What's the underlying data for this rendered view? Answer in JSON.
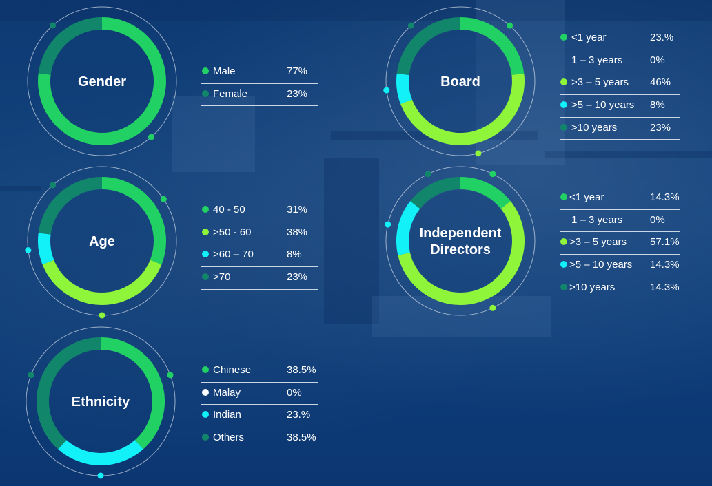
{
  "colors": {
    "dark_green": "#12866b",
    "green": "#21d163",
    "lime": "#8ff53a",
    "cyan": "#12f0f8",
    "white": "#ffffff",
    "outer_ring": "#c8d4e2"
  },
  "chart_data": [
    {
      "type": "pie",
      "title": "Gender",
      "categories": [
        "Male",
        "Female"
      ],
      "values": [
        77,
        23
      ],
      "value_labels": [
        "77%",
        "23%"
      ],
      "colors": [
        "green",
        "dark_green"
      ]
    },
    {
      "type": "pie",
      "title": "Age",
      "categories": [
        "40 - 50",
        ">50 - 60",
        ">60 – 70",
        ">70"
      ],
      "values": [
        31,
        38,
        8,
        23
      ],
      "value_labels": [
        "31%",
        "38%",
        "8%",
        "23%"
      ],
      "colors": [
        "green",
        "lime",
        "cyan",
        "dark_green"
      ]
    },
    {
      "type": "pie",
      "title": "Ethnicity",
      "categories": [
        "Chinese",
        "Malay",
        "Indian",
        "Others"
      ],
      "values": [
        38.5,
        0,
        23.1,
        38.5
      ],
      "value_labels": [
        "38.5%",
        "0%",
        "23.%",
        "38.5%"
      ],
      "colors": [
        "green",
        "white",
        "cyan",
        "dark_green"
      ]
    },
    {
      "type": "pie",
      "title": "Board",
      "categories": [
        "<1 year",
        "1 – 3 years",
        ">3 – 5 years",
        ">5 – 10 years",
        ">10 years"
      ],
      "values": [
        23.1,
        0,
        46.2,
        7.7,
        23.1
      ],
      "value_labels": [
        "23.%",
        "0%",
        "46%",
        "8%",
        "23%"
      ],
      "colors": [
        "green",
        "none",
        "lime",
        "cyan",
        "dark_green"
      ]
    },
    {
      "type": "pie",
      "title": "Independent Directors",
      "title_lines": [
        "Independent",
        "Directors"
      ],
      "categories": [
        "<1 year",
        "1 – 3 years",
        ">3 – 5 years",
        ">5 – 10 years",
        ">10 years"
      ],
      "values": [
        14.3,
        0,
        57.1,
        14.3,
        14.3
      ],
      "value_labels": [
        "14.3%",
        "0%",
        "57.1%",
        "14.3%",
        "14.3%"
      ],
      "colors": [
        "green",
        "none",
        "lime",
        "cyan",
        "dark_green"
      ]
    }
  ]
}
